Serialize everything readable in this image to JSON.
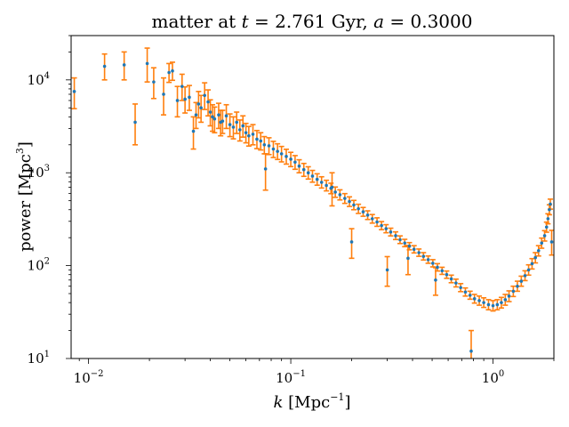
{
  "chart_data": {
    "type": "scatter",
    "title_parts": [
      "matter at ",
      "t",
      " = 2.761 Gyr, ",
      "a",
      " = 0.3000"
    ],
    "xlabel_parts": [
      "k",
      " [Mpc",
      "−1",
      "]"
    ],
    "ylabel_parts": [
      "power [Mpc",
      "3",
      "]"
    ],
    "x_scale": "log",
    "y_scale": "log",
    "xlim": [
      0.0082,
      2.0
    ],
    "ylim": [
      10,
      30000
    ],
    "grid": false,
    "x_ticks": [
      {
        "value": 0.01,
        "mantissa": "10",
        "exp": "−2"
      },
      {
        "value": 0.1,
        "mantissa": "10",
        "exp": "−1"
      },
      {
        "value": 1,
        "mantissa": "10",
        "exp": "0"
      }
    ],
    "y_ticks": [
      {
        "value": 10,
        "mantissa": "10",
        "exp": "1"
      },
      {
        "value": 100,
        "mantissa": "10",
        "exp": "2"
      },
      {
        "value": 1000,
        "mantissa": "10",
        "exp": "3"
      },
      {
        "value": 10000,
        "mantissa": "10",
        "exp": "4"
      }
    ],
    "colors": {
      "points": "#1f77b4",
      "errorbars": "#ff7f0e"
    },
    "series": [
      {
        "x": [
          0.0085,
          0.012,
          0.015,
          0.017,
          0.0195,
          0.021,
          0.0235,
          0.025,
          0.026,
          0.0275,
          0.029,
          0.03,
          0.0315,
          0.033,
          0.034,
          0.035,
          0.036,
          0.0375,
          0.039,
          0.04,
          0.041,
          0.042,
          0.044,
          0.045,
          0.046,
          0.048,
          0.05,
          0.052,
          0.054,
          0.056,
          0.058,
          0.06,
          0.062,
          0.065,
          0.068,
          0.071,
          0.074,
          0.078,
          0.082,
          0.086,
          0.09,
          0.095,
          0.1,
          0.105,
          0.11,
          0.116,
          0.122,
          0.128,
          0.135,
          0.142,
          0.15,
          0.158,
          0.166,
          0.175,
          0.185,
          0.195,
          0.205,
          0.216,
          0.228,
          0.24,
          0.253,
          0.267,
          0.281,
          0.296,
          0.312,
          0.33,
          0.347,
          0.366,
          0.386,
          0.407,
          0.43,
          0.453,
          0.478,
          0.504,
          0.531,
          0.56,
          0.59,
          0.622,
          0.656,
          0.692,
          0.73,
          0.77,
          0.81,
          0.855,
          0.9,
          0.95,
          1.0,
          1.05,
          1.1,
          1.15,
          1.2,
          1.26,
          1.32,
          1.38,
          1.44,
          1.5,
          1.56,
          1.62,
          1.68,
          1.74,
          1.8,
          1.84,
          1.87,
          1.9,
          1.92,
          1.95,
          0.075,
          0.16,
          0.2,
          0.3,
          0.38,
          0.52,
          0.78
        ],
        "y": [
          7500,
          14000,
          14500,
          3500,
          15000,
          9500,
          7000,
          12000,
          12500,
          6000,
          8500,
          6200,
          6500,
          2800,
          4200,
          5500,
          5000,
          6800,
          5800,
          4500,
          4000,
          3800,
          4200,
          3500,
          3600,
          4100,
          3300,
          3100,
          3500,
          2900,
          3200,
          2700,
          2500,
          2600,
          2300,
          2200,
          2000,
          1950,
          1800,
          1700,
          1600,
          1500,
          1400,
          1300,
          1180,
          1080,
          1000,
          920,
          850,
          790,
          730,
          680,
          620,
          580,
          530,
          490,
          450,
          410,
          380,
          350,
          320,
          295,
          270,
          250,
          230,
          210,
          190,
          175,
          162,
          150,
          138,
          126,
          116,
          106,
          96,
          88,
          80,
          72,
          65,
          58,
          52,
          48,
          44,
          42,
          40,
          38,
          37,
          38,
          40,
          43,
          47,
          53,
          60,
          68,
          78,
          90,
          105,
          122,
          145,
          175,
          210,
          260,
          320,
          400,
          460,
          180,
          1100,
          700,
          180,
          90,
          120,
          70,
          12
        ],
        "err_hi": [
          3000,
          5000,
          5500,
          2000,
          7000,
          4000,
          3500,
          3000,
          3000,
          2500,
          3000,
          2200,
          2200,
          1200,
          1500,
          2000,
          1800,
          2500,
          2000,
          1600,
          1400,
          1300,
          1400,
          1200,
          1100,
          1300,
          1000,
          900,
          1000,
          800,
          900,
          700,
          650,
          700,
          550,
          500,
          450,
          430,
          380,
          350,
          320,
          290,
          260,
          230,
          200,
          180,
          160,
          140,
          125,
          115,
          100,
          92,
          82,
          75,
          66,
          60,
          54,
          48,
          43,
          39,
          35,
          32,
          28,
          26,
          23,
          21,
          19,
          17,
          15,
          14,
          13,
          12,
          11,
          10,
          9,
          8,
          7.5,
          7,
          6.5,
          6,
          5.5,
          5,
          5,
          5,
          5,
          5,
          5,
          5,
          5.5,
          6,
          6.5,
          7,
          8,
          9,
          10,
          12,
          14,
          16,
          19,
          23,
          28,
          34,
          42,
          52,
          60,
          60,
          500,
          300,
          70,
          35,
          45,
          25,
          8
        ],
        "err_lo": [
          2600,
          4000,
          4500,
          1500,
          5500,
          3200,
          2800,
          2600,
          2600,
          2000,
          2500,
          1800,
          1800,
          1000,
          1200,
          1600,
          1500,
          2000,
          1700,
          1300,
          1200,
          1100,
          1200,
          1000,
          950,
          1100,
          850,
          780,
          850,
          700,
          780,
          600,
          560,
          600,
          480,
          440,
          400,
          380,
          340,
          310,
          290,
          260,
          235,
          210,
          180,
          165,
          145,
          128,
          115,
          105,
          92,
          85,
          76,
          70,
          62,
          56,
          50,
          45,
          40,
          36,
          33,
          30,
          26,
          24,
          21,
          19,
          17,
          15,
          14,
          13,
          12,
          11,
          10,
          9,
          8.5,
          7.5,
          7,
          6.5,
          6,
          5.5,
          5,
          4.5,
          4.5,
          4.5,
          4.5,
          4.5,
          4.5,
          4.5,
          5,
          5.5,
          6,
          6.5,
          7,
          8,
          9,
          11,
          13,
          15,
          18,
          21,
          26,
          31,
          38,
          47,
          54,
          50,
          450,
          260,
          60,
          30,
          40,
          22,
          3
        ]
      }
    ]
  }
}
